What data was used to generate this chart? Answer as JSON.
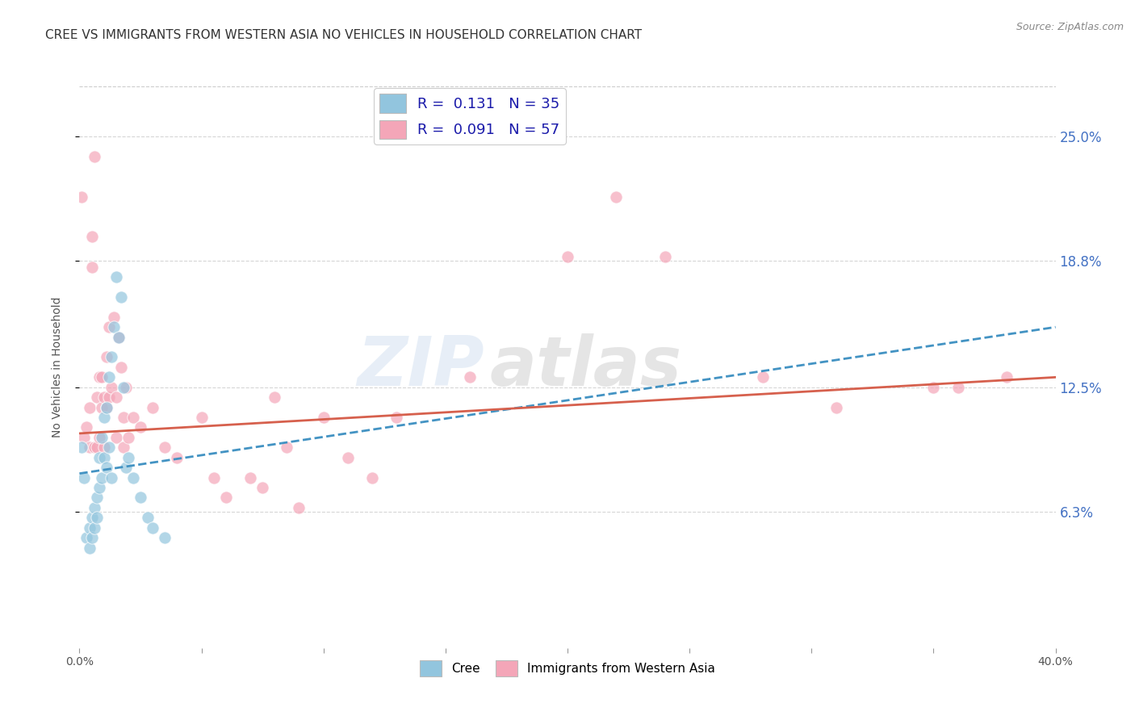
{
  "title": "CREE VS IMMIGRANTS FROM WESTERN ASIA NO VEHICLES IN HOUSEHOLD CORRELATION CHART",
  "source": "Source: ZipAtlas.com",
  "ylabel": "No Vehicles in Household",
  "ytick_labels": [
    "6.3%",
    "12.5%",
    "18.8%",
    "25.0%"
  ],
  "ytick_values": [
    0.063,
    0.125,
    0.188,
    0.25
  ],
  "xlim": [
    0.0,
    0.4
  ],
  "ylim": [
    -0.005,
    0.275
  ],
  "legend_label_blue": "R =  0.131   N = 35",
  "legend_label_pink": "R =  0.091   N = 57",
  "legend_label_cree": "Cree",
  "legend_label_immigrants": "Immigrants from Western Asia",
  "color_blue": "#92c5de",
  "color_pink": "#f4a6b8",
  "color_blue_line": "#4393c3",
  "color_pink_line": "#d6604d",
  "watermark_left": "ZIP",
  "watermark_right": "atlas",
  "blue_scatter_x": [
    0.001,
    0.002,
    0.003,
    0.004,
    0.004,
    0.005,
    0.005,
    0.006,
    0.006,
    0.007,
    0.007,
    0.008,
    0.008,
    0.009,
    0.009,
    0.01,
    0.01,
    0.011,
    0.011,
    0.012,
    0.012,
    0.013,
    0.013,
    0.014,
    0.015,
    0.016,
    0.017,
    0.018,
    0.019,
    0.02,
    0.022,
    0.025,
    0.028,
    0.03,
    0.035
  ],
  "blue_scatter_y": [
    0.095,
    0.08,
    0.05,
    0.055,
    0.045,
    0.06,
    0.05,
    0.065,
    0.055,
    0.07,
    0.06,
    0.09,
    0.075,
    0.1,
    0.08,
    0.11,
    0.09,
    0.115,
    0.085,
    0.13,
    0.095,
    0.14,
    0.08,
    0.155,
    0.18,
    0.15,
    0.17,
    0.125,
    0.085,
    0.09,
    0.08,
    0.07,
    0.06,
    0.055,
    0.05
  ],
  "pink_scatter_x": [
    0.001,
    0.002,
    0.003,
    0.004,
    0.004,
    0.005,
    0.005,
    0.006,
    0.006,
    0.007,
    0.007,
    0.008,
    0.008,
    0.009,
    0.009,
    0.01,
    0.01,
    0.011,
    0.011,
    0.012,
    0.012,
    0.013,
    0.014,
    0.015,
    0.015,
    0.016,
    0.017,
    0.018,
    0.018,
    0.019,
    0.02,
    0.022,
    0.025,
    0.03,
    0.035,
    0.04,
    0.05,
    0.055,
    0.06,
    0.07,
    0.075,
    0.08,
    0.085,
    0.09,
    0.1,
    0.11,
    0.12,
    0.13,
    0.16,
    0.2,
    0.22,
    0.24,
    0.28,
    0.31,
    0.35,
    0.36,
    0.38
  ],
  "pink_scatter_y": [
    0.22,
    0.1,
    0.105,
    0.115,
    0.095,
    0.2,
    0.185,
    0.24,
    0.095,
    0.12,
    0.095,
    0.13,
    0.1,
    0.13,
    0.115,
    0.12,
    0.095,
    0.14,
    0.115,
    0.155,
    0.12,
    0.125,
    0.16,
    0.12,
    0.1,
    0.15,
    0.135,
    0.11,
    0.095,
    0.125,
    0.1,
    0.11,
    0.105,
    0.115,
    0.095,
    0.09,
    0.11,
    0.08,
    0.07,
    0.08,
    0.075,
    0.12,
    0.095,
    0.065,
    0.11,
    0.09,
    0.08,
    0.11,
    0.13,
    0.19,
    0.22,
    0.19,
    0.13,
    0.115,
    0.125,
    0.125,
    0.13
  ],
  "blue_trend_x": [
    0.0,
    0.4
  ],
  "blue_trend_y": [
    0.082,
    0.155
  ],
  "pink_trend_x": [
    0.0,
    0.4
  ],
  "pink_trend_y": [
    0.102,
    0.13
  ],
  "background_color": "#ffffff",
  "grid_color": "#cccccc",
  "title_fontsize": 11,
  "axis_label_fontsize": 10,
  "tick_fontsize": 10
}
